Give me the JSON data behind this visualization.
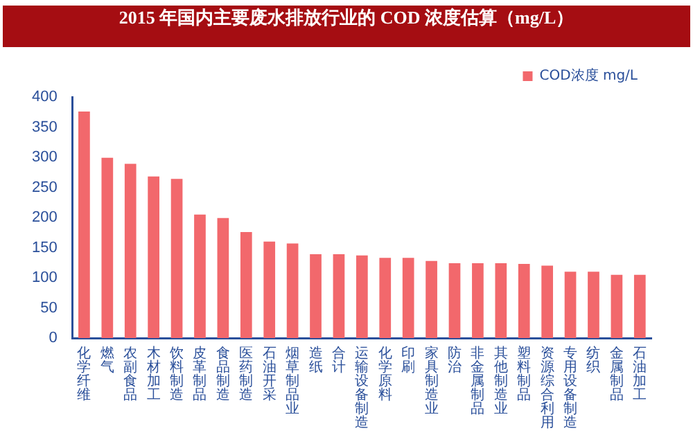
{
  "chart_data": {
    "type": "bar",
    "title": "2015 年国内主要废水排放行业的 COD 浓度估算（mg/L）",
    "categories": [
      "化学纤维",
      "燃气",
      "农副食品",
      "木材加工",
      "饮料制造",
      "皮革制品",
      "食品制造",
      "医药制造",
      "石油开采",
      "烟草制品业",
      "造纸",
      "合计",
      "运输设备制造",
      "化学原料",
      "印刷",
      "家具制造业",
      "防治",
      "非金属制品",
      "其他制造业",
      "塑料制品",
      "资源综合利用",
      "专用设备制造",
      "纺织",
      "金属制品",
      "石油加工"
    ],
    "series": [
      {
        "name": "COD浓度 mg/L",
        "color": "#f2686c",
        "values": [
          376,
          299,
          289,
          268,
          264,
          205,
          199,
          176,
          160,
          157,
          139,
          139,
          137,
          133,
          133,
          128,
          124,
          124,
          124,
          123,
          120,
          110,
          110,
          105,
          105
        ]
      }
    ],
    "ylim": [
      0,
      400
    ],
    "yticks": [
      0,
      50,
      100,
      150,
      200,
      250,
      300,
      350,
      400
    ],
    "grid": false,
    "legend": "top"
  }
}
